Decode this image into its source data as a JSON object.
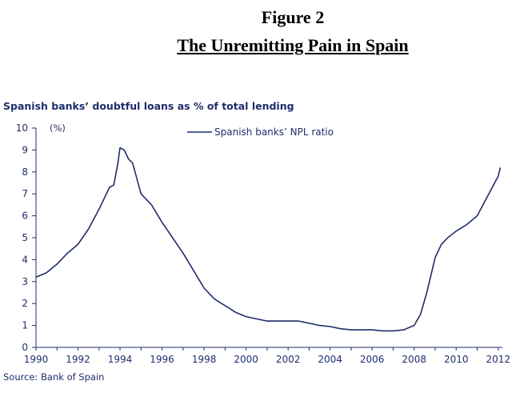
{
  "figure": {
    "label": "Figure 2",
    "title": "The Unremitting Pain in Spain"
  },
  "chart_data": {
    "type": "line",
    "title": "Spanish banks’ doubtful loans as % of total lending",
    "ylabel": "(%)",
    "source": "Source: Bank of Spain",
    "x_ticks": [
      1990,
      1992,
      1994,
      1996,
      1998,
      2000,
      2002,
      2004,
      2006,
      2008,
      2010,
      2012
    ],
    "y_ticks": [
      0,
      1,
      2,
      3,
      4,
      5,
      6,
      7,
      8,
      9,
      10
    ],
    "xlim": [
      1990,
      2012.2
    ],
    "ylim": [
      0,
      10
    ],
    "legend_position": "top-center",
    "grid": false,
    "color": "#1f2d6b",
    "series": [
      {
        "name": "Spanish banks’ NPL ratio",
        "x": [
          1990.0,
          1990.5,
          1991.0,
          1991.5,
          1992.0,
          1992.5,
          1993.0,
          1993.5,
          1993.7,
          1993.9,
          1994.0,
          1994.2,
          1994.4,
          1994.6,
          1995.0,
          1995.5,
          1996.0,
          1996.5,
          1997.0,
          1997.5,
          1998.0,
          1998.5,
          1999.0,
          1999.5,
          2000.0,
          2000.5,
          2001.0,
          2001.5,
          2002.0,
          2002.5,
          2003.0,
          2003.5,
          2004.0,
          2004.5,
          2005.0,
          2005.5,
          2006.0,
          2006.5,
          2007.0,
          2007.5,
          2008.0,
          2008.3,
          2008.6,
          2009.0,
          2009.3,
          2009.6,
          2010.0,
          2010.5,
          2011.0,
          2011.5,
          2012.0,
          2012.1
        ],
        "y": [
          3.2,
          3.4,
          3.8,
          4.3,
          4.7,
          5.4,
          6.3,
          7.3,
          7.4,
          8.4,
          9.1,
          9.0,
          8.6,
          8.4,
          7.0,
          6.5,
          5.7,
          5.0,
          4.3,
          3.5,
          2.7,
          2.2,
          1.9,
          1.6,
          1.4,
          1.3,
          1.2,
          1.2,
          1.2,
          1.2,
          1.1,
          1.0,
          0.95,
          0.85,
          0.8,
          0.8,
          0.8,
          0.75,
          0.75,
          0.8,
          1.0,
          1.5,
          2.5,
          4.1,
          4.7,
          5.0,
          5.3,
          5.6,
          6.0,
          6.9,
          7.8,
          8.2
        ]
      }
    ]
  }
}
